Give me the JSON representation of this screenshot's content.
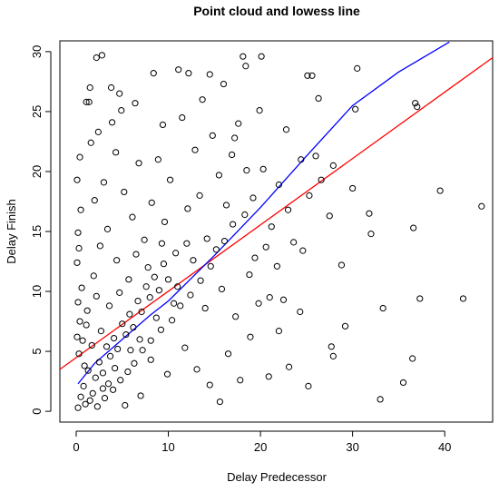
{
  "chart_data": {
    "type": "scatter",
    "title": "Point cloud and lowess line",
    "xlabel": "Delay Predecessor",
    "ylabel": "Delay Finish",
    "xlim": [
      -1.77,
      45.2
    ],
    "ylim": [
      -0.9,
      30.9
    ],
    "xticks": [
      0,
      10,
      20,
      30,
      40
    ],
    "yticks": [
      0,
      5,
      10,
      15,
      20,
      25,
      30
    ],
    "color": "black",
    "x": [
      44,
      42,
      39.5,
      37.3,
      36.8,
      37,
      36.6,
      36.5,
      35.5,
      33,
      33.3,
      32,
      31.8,
      30.5,
      30.3,
      30,
      29.2,
      28.8,
      27.9,
      27.7,
      27.9,
      27.5,
      26.6,
      26,
      25.6,
      25.1,
      25.2,
      24.3,
      23.1,
      22,
      21,
      20.9,
      20.1,
      18.1,
      18.4,
      17.8,
      15.6,
      14.5,
      12.2,
      11.1,
      8.4,
      2.2,
      2.8,
      1.5,
      3.8,
      4.7,
      4.9,
      1.1,
      1.4,
      0.2,
      0.5,
      0.8,
      1.0,
      1.3,
      0.3,
      0.1,
      0.4,
      0.2,
      0.6,
      0.1,
      0.3,
      0.2,
      0.5,
      0.1,
      0.4,
      1.8,
      2.1,
      2.5,
      2.9,
      3.3,
      3.7,
      4.1,
      4.5,
      5.0,
      5.4,
      5.8,
      6.2,
      6.7,
      7.1,
      7.6,
      8.0,
      8.5,
      9.0,
      9.5,
      10.0,
      1.5,
      2.3,
      3.1,
      4.0,
      4.8,
      5.6,
      6.3,
      7.2,
      8.1,
      9.2,
      10.4,
      11.3,
      12.4,
      13.5,
      14.6,
      15.2,
      16.1,
      17.0,
      18.3,
      19.2,
      1.2,
      1.9,
      2.6,
      3.4,
      2.0,
      3.0,
      1.6,
      2.4,
      3.9,
      4.3,
      5.2,
      6.1,
      6.8,
      7.4,
      8.2,
      8.9,
      9.6,
      10.2,
      10.8,
      11.5,
      12.1,
      12.9,
      13.4,
      14.2,
      14.8,
      15.5,
      16.3,
      16.9,
      17.6,
      18.5,
      19.4,
      20.3,
      21.2,
      22.0,
      22.8,
      23.6,
      24.4,
      25.3,
      26.3,
      4.4,
      5.7,
      6.5,
      7.8,
      9.3,
      11.0,
      12.7,
      14.0,
      15.8,
      17.3,
      18.8,
      20.6,
      21.8,
      23.0,
      24.6,
      11.8,
      13.1,
      16.5,
      18.9,
      14.5,
      9.9,
      7.0,
      5.3,
      3.5,
      2.7,
      1.7,
      0.9,
      0.7,
      1.1,
      2.2,
      3.6,
      4.7,
      5.9,
      6.9,
      8.7,
      10.6,
      12.0,
      19.8,
      22.5,
      16.0,
      6.4,
      9.4,
      13.7,
      19.9,
      17.2,
      8.1,
      4.2,
      2.9
    ],
    "y": [
      17.1,
      9.4,
      18.4,
      9.4,
      25.7,
      25.4,
      15.3,
      4.4,
      2.4,
      1,
      8.6,
      14.8,
      16.5,
      28.6,
      25.2,
      18.6,
      7.1,
      12.2,
      20.5,
      5.4,
      4.6,
      16.3,
      19.3,
      21.3,
      28,
      28,
      2.1,
      8.3,
      3.7,
      6.7,
      9.5,
      2.9,
      29.6,
      29.6,
      28.8,
      2.6,
      0.8,
      28.1,
      28.2,
      28.5,
      28.2,
      29.5,
      29.7,
      27,
      27,
      26.5,
      25.1,
      25.8,
      25.8,
      0.3,
      1.2,
      2.1,
      0.6,
      3.4,
      4.8,
      6.2,
      7.5,
      9.1,
      10.3,
      12.4,
      13.6,
      14.9,
      16.8,
      19.3,
      21.2,
      1.5,
      2.8,
      4.1,
      3.2,
      5.4,
      4.6,
      6.1,
      5.2,
      7.3,
      6.4,
      8.1,
      7.0,
      9.2,
      8.3,
      10.4,
      9.5,
      11.2,
      10.1,
      12.3,
      11.0,
      0.9,
      0.4,
      1.1,
      1.8,
      2.6,
      3.3,
      4.0,
      5.1,
      5.9,
      6.8,
      7.6,
      8.8,
      9.7,
      10.9,
      12.1,
      13.5,
      14.2,
      15.6,
      16.4,
      17.8,
      8.4,
      11.3,
      13.8,
      15.2,
      17.6,
      19.1,
      22.4,
      23.3,
      24.1,
      21.6,
      18.3,
      16.2,
      20.7,
      14.3,
      17.4,
      21.0,
      15.8,
      19.3,
      13.2,
      24.5,
      16.9,
      21.8,
      18.0,
      14.4,
      23.0,
      19.7,
      17.2,
      21.4,
      24.0,
      20.1,
      12.8,
      20.2,
      15.4,
      18.9,
      23.5,
      14.1,
      21.0,
      18.0,
      26.1,
      12.6,
      11.0,
      13.1,
      12.0,
      14.0,
      10.4,
      12.6,
      8.6,
      10.2,
      7.9,
      11.4,
      13.7,
      12.1,
      16.8,
      13.4,
      5.3,
      3.5,
      4.8,
      6.2,
      2.2,
      3.1,
      1.3,
      0.5,
      2.3,
      6.7,
      5.5,
      3.8,
      5.9,
      7.2,
      9.6,
      8.8,
      9.9,
      5.1,
      6.0,
      7.8,
      9.0,
      14.0,
      9.0,
      9.3,
      27.3,
      25.7,
      23.9,
      26.0,
      25.1,
      22.8,
      4.3,
      3.6,
      1.9
    ],
    "lines": [
      {
        "color": "red",
        "x": [
          -1.77,
          45.2
        ],
        "y": [
          3.5,
          29.5
        ]
      },
      {
        "color": "blue",
        "x": [
          0.2,
          2,
          5,
          8,
          10,
          15,
          20,
          25,
          30,
          35,
          40.5
        ],
        "y": [
          2.3,
          4,
          6,
          8,
          9.2,
          13,
          17,
          21.3,
          25.5,
          28.3,
          30.8
        ]
      }
    ]
  }
}
